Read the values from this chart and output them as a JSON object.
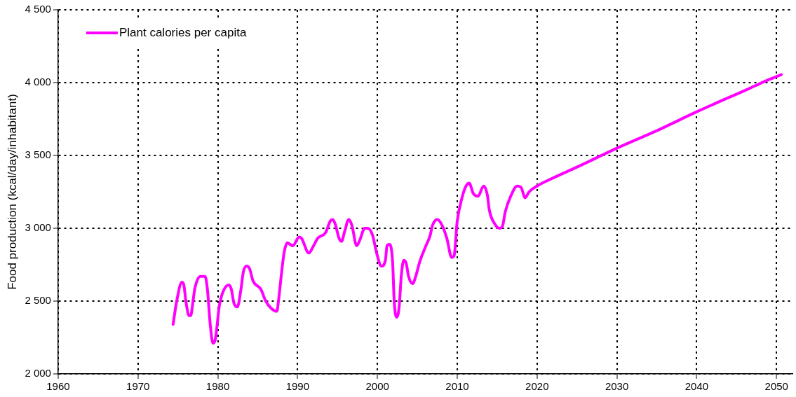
{
  "chart_data": {
    "type": "line",
    "ylabel": "Food production (kcal/day/inhabitant)",
    "xlim": [
      1960,
      2052
    ],
    "xticks": [
      1960,
      1970,
      1980,
      1990,
      2000,
      2010,
      2020,
      2030,
      2040,
      2050
    ],
    "ylim": [
      2000,
      4500
    ],
    "yticks": [
      {
        "value": 2000,
        "label": "2 000"
      },
      {
        "value": 2500,
        "label": "2 500"
      },
      {
        "value": 3000,
        "label": "3 000"
      },
      {
        "value": 3500,
        "label": "3 500"
      },
      {
        "value": 4000,
        "label": "4 000"
      },
      {
        "value": 4500,
        "label": "4 500"
      }
    ],
    "grid": true,
    "legend": "top left",
    "marker": "none",
    "line_style": "solid",
    "series": [
      {
        "name": "Plant calories per capita",
        "color": "#ff00ff",
        "x": [
          1974.4,
          1974.85,
          1975.5,
          1975.75,
          1976.0,
          1976.4,
          1976.6,
          1976.9,
          1977.1,
          1977.4,
          1977.8,
          1978.4,
          1978.7,
          1979.05,
          1979.4,
          1979.7,
          1980.2,
          1980.7,
          1981.4,
          1981.7,
          1982.0,
          1982.45,
          1982.9,
          1983.2,
          1983.6,
          1984.0,
          1984.4,
          1985.4,
          1986.0,
          1986.7,
          1987.4,
          1987.6,
          1988.0,
          1988.3,
          1988.7,
          1989.4,
          1990.2,
          1990.5,
          1991.4,
          1992.0,
          1992.5,
          1993.5,
          1994.1,
          1994.4,
          1994.7,
          1995.2,
          1995.5,
          1995.9,
          1996.4,
          1996.8,
          1997.4,
          1997.8,
          1998.4,
          1998.8,
          1999.4,
          1999.9,
          2000.5,
          2001.0,
          2001.2,
          2001.5,
          2001.9,
          2002.1,
          2002.4,
          2002.7,
          2003.0,
          2003.3,
          2003.6,
          2003.9,
          2004.4,
          2004.8,
          2005.3,
          2006.0,
          2006.6,
          2006.9,
          2007.5,
          2008.1,
          2008.7,
          2009.3,
          2009.6,
          2010.0,
          2010.6,
          2011.1,
          2011.5,
          2012.0,
          2012.6,
          2013.3,
          2013.8,
          2014.0,
          2014.7,
          2015.3,
          2015.7,
          2016.0,
          2016.7,
          2017.5,
          2018.0,
          2018.5,
          2019.0,
          2020.0,
          2021.8,
          2025,
          2030,
          2035,
          2040,
          2046.6,
          2048.6,
          2050.6
        ],
        "values": [
          2340,
          2500,
          2630,
          2610,
          2500,
          2400,
          2400,
          2500,
          2580,
          2640,
          2670,
          2670,
          2580,
          2340,
          2210,
          2240,
          2470,
          2570,
          2610,
          2580,
          2490,
          2460,
          2580,
          2700,
          2740,
          2720,
          2640,
          2580,
          2500,
          2450,
          2430,
          2500,
          2700,
          2830,
          2900,
          2880,
          2940,
          2930,
          2830,
          2880,
          2930,
          2970,
          3050,
          3060,
          3030,
          2930,
          2910,
          2980,
          3060,
          3020,
          2880,
          2920,
          3000,
          3000,
          2950,
          2830,
          2740,
          2780,
          2880,
          2890,
          2770,
          2500,
          2390,
          2450,
          2680,
          2780,
          2760,
          2670,
          2620,
          2670,
          2770,
          2870,
          2950,
          3020,
          3060,
          3020,
          2930,
          2800,
          2810,
          3050,
          3210,
          3290,
          3310,
          3240,
          3220,
          3290,
          3220,
          3130,
          3030,
          3000,
          3020,
          3110,
          3220,
          3290,
          3280,
          3210,
          3250,
          3290,
          3340,
          3420,
          3550,
          3670,
          3800,
          3960,
          4010,
          4055
        ]
      }
    ]
  }
}
